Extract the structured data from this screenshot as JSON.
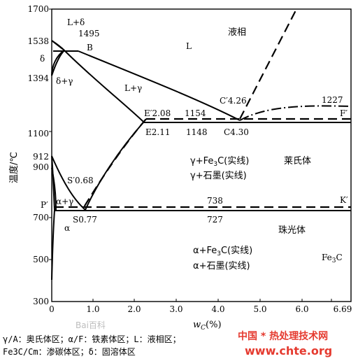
{
  "diagram": {
    "y_axis_title": "温度/℃",
    "x_axis_title_main": "w",
    "x_axis_title_sub": "C",
    "x_axis_title_unit": "(%)",
    "x_ticks": [
      "0",
      "1.0",
      "2.0",
      "3.0",
      "4.0",
      "5.0",
      "6.0",
      "6.69"
    ],
    "y_ticks": [
      "1700",
      "1538",
      "1394",
      "1100",
      "912",
      "900",
      "700",
      "500",
      "300"
    ],
    "phase_labels": {
      "L": "L",
      "liquid": "液相",
      "L_delta": "L+δ",
      "delta": "δ",
      "delta_gamma": "δ+γ",
      "L_gamma": "L+γ",
      "alpha_gamma": "α+γ",
      "alpha": "α",
      "pearlite": "珠光体",
      "ledeburite": "莱氏体",
      "fe3c": "Fe",
      "fe3c_sub": "3",
      "fe3c_c": "C",
      "gamma_fe3c": "γ+Fe",
      "gamma_fe3c_sub": "3",
      "gamma_fe3c_tail": "C(实线)",
      "gamma_graphite": "γ+石墨(实线)",
      "alpha_fe3c": "α+Fe",
      "alpha_fe3c_sub": "3",
      "alpha_fe3c_tail": "C(实线)",
      "alpha_graphite": "α+石墨(实线)"
    },
    "point_labels": {
      "t1495": "1495",
      "B": "B",
      "C_prime": "C′4.26",
      "t1227": "1227",
      "E_prime": "E′2.08",
      "t1154": "1154",
      "F_prime": "F′",
      "E": "E2.11",
      "t1148": "1148",
      "C": "C4.30",
      "S_prime": "S′0.68",
      "P_prime": "P′",
      "t738": "738",
      "K_prime": "K′",
      "S": "S0.77",
      "t727": "727"
    }
  },
  "legend": {
    "line1": "γ/A：奥氏体区；α/F：铁素体区；L：液相区；",
    "line2": "Fe3C/Cm：渗碳体区；δ：固溶体区"
  },
  "watermark": {
    "line1": "中国 * 热处理技术网",
    "line2": "www.chte.org",
    "line3": "Bai百科"
  }
}
